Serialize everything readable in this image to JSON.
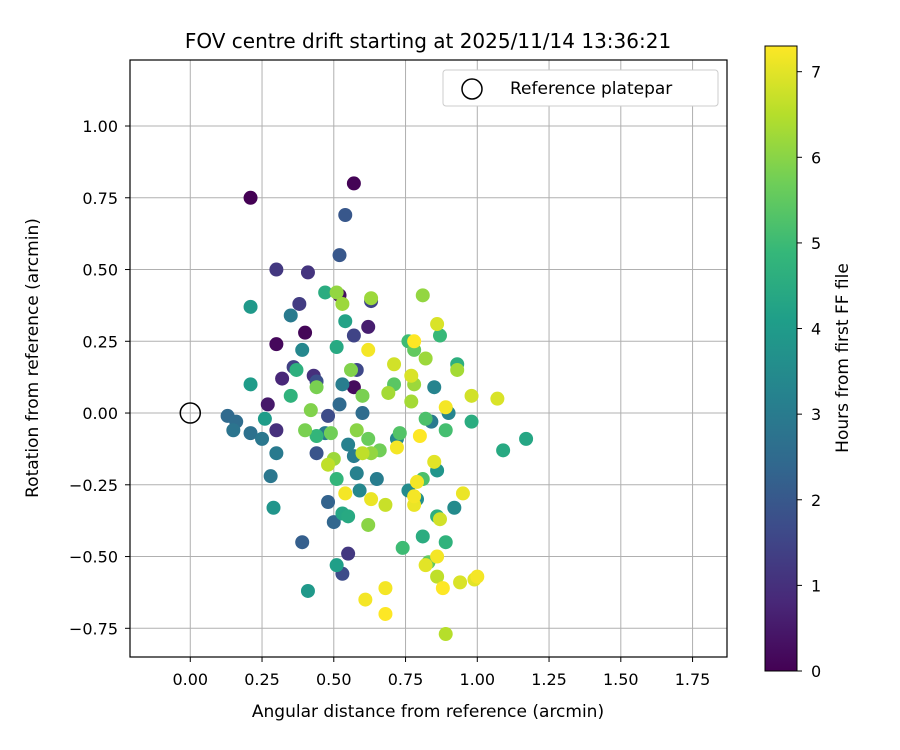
{
  "chart_data": {
    "type": "scatter",
    "title": "FOV centre drift starting at 2025/11/14 13:36:21",
    "xlabel": "Angular distance from reference (arcmin)",
    "ylabel": "Rotation from reference (arcmin)",
    "xlim": [
      -0.21,
      1.87
    ],
    "ylim": [
      -0.85,
      1.23
    ],
    "xticks": [
      0.0,
      0.25,
      0.5,
      0.75,
      1.0,
      1.25,
      1.5,
      1.75
    ],
    "xtick_labels": [
      "0.00",
      "0.25",
      "0.50",
      "0.75",
      "1.00",
      "1.25",
      "1.50",
      "1.75"
    ],
    "yticks": [
      -0.75,
      -0.5,
      -0.25,
      0.0,
      0.25,
      0.5,
      0.75,
      1.0
    ],
    "ytick_labels": [
      "−0.75",
      "−0.50",
      "−0.25",
      "0.00",
      "0.25",
      "0.50",
      "0.75",
      "1.00"
    ],
    "grid": true,
    "legend": {
      "position": "top-right",
      "entries": [
        "Reference platepar"
      ]
    },
    "reference_point": {
      "x": 0.0,
      "y": 0.0,
      "label": "Reference platepar"
    },
    "colorbar": {
      "label": "Hours from first FF file",
      "min": 0,
      "max": 7.3,
      "ticks": [
        0,
        1,
        2,
        3,
        4,
        5,
        6,
        7
      ],
      "tick_labels": [
        "0",
        "1",
        "2",
        "3",
        "4",
        "5",
        "6",
        "7"
      ],
      "colormap": "viridis",
      "colormap_stops": [
        "#440154",
        "#482878",
        "#3e4989",
        "#31688e",
        "#26828e",
        "#1f9e89",
        "#35b779",
        "#6ece58",
        "#b5de2b",
        "#fde725"
      ]
    },
    "points": [
      {
        "x": 0.21,
        "y": 0.75,
        "t": 0.0
      },
      {
        "x": 0.57,
        "y": 0.8,
        "t": 0.05
      },
      {
        "x": 0.4,
        "y": 0.28,
        "t": 0.1
      },
      {
        "x": 0.3,
        "y": 0.24,
        "t": 0.15
      },
      {
        "x": 0.57,
        "y": 0.09,
        "t": 0.2
      },
      {
        "x": 0.27,
        "y": 0.03,
        "t": 0.5
      },
      {
        "x": 0.32,
        "y": 0.12,
        "t": 0.8
      },
      {
        "x": 0.52,
        "y": 0.41,
        "t": 0.3
      },
      {
        "x": 0.62,
        "y": 0.3,
        "t": 0.6
      },
      {
        "x": 0.3,
        "y": 0.5,
        "t": 1.2
      },
      {
        "x": 0.41,
        "y": 0.49,
        "t": 1.1
      },
      {
        "x": 0.38,
        "y": 0.38,
        "t": 1.3
      },
      {
        "x": 0.36,
        "y": 0.16,
        "t": 1.4
      },
      {
        "x": 0.43,
        "y": 0.13,
        "t": 1.0
      },
      {
        "x": 0.55,
        "y": -0.49,
        "t": 1.2
      },
      {
        "x": 0.3,
        "y": -0.06,
        "t": 1.0
      },
      {
        "x": 0.57,
        "y": 0.27,
        "t": 1.5
      },
      {
        "x": 0.63,
        "y": 0.39,
        "t": 1.5
      },
      {
        "x": 0.58,
        "y": 0.15,
        "t": 1.6
      },
      {
        "x": 0.53,
        "y": -0.56,
        "t": 1.7
      },
      {
        "x": 0.44,
        "y": 0.11,
        "t": 1.8
      },
      {
        "x": 0.48,
        "y": -0.01,
        "t": 1.7
      },
      {
        "x": 0.44,
        "y": -0.14,
        "t": 1.9
      },
      {
        "x": 0.54,
        "y": 0.69,
        "t": 2.0
      },
      {
        "x": 0.52,
        "y": 0.55,
        "t": 2.0
      },
      {
        "x": 0.39,
        "y": -0.45,
        "t": 2.2
      },
      {
        "x": 0.48,
        "y": -0.31,
        "t": 2.3
      },
      {
        "x": 0.5,
        "y": -0.38,
        "t": 2.4
      },
      {
        "x": 0.52,
        "y": 0.03,
        "t": 2.5
      },
      {
        "x": 0.6,
        "y": 0.0,
        "t": 2.6
      },
      {
        "x": 0.13,
        "y": -0.01,
        "t": 2.5
      },
      {
        "x": 0.16,
        "y": -0.03,
        "t": 2.6
      },
      {
        "x": 0.21,
        "y": -0.07,
        "t": 2.7
      },
      {
        "x": 0.15,
        "y": -0.06,
        "t": 2.8
      },
      {
        "x": 0.25,
        "y": -0.09,
        "t": 2.9
      },
      {
        "x": 0.28,
        "y": -0.22,
        "t": 2.9
      },
      {
        "x": 0.3,
        "y": -0.14,
        "t": 3.0
      },
      {
        "x": 0.35,
        "y": 0.34,
        "t": 3.0
      },
      {
        "x": 0.39,
        "y": 0.22,
        "t": 3.4
      },
      {
        "x": 0.53,
        "y": 0.1,
        "t": 3.1
      },
      {
        "x": 0.47,
        "y": -0.07,
        "t": 3.0
      },
      {
        "x": 0.55,
        "y": -0.11,
        "t": 3.2
      },
      {
        "x": 0.57,
        "y": -0.15,
        "t": 3.1
      },
      {
        "x": 0.58,
        "y": -0.21,
        "t": 3.2
      },
      {
        "x": 0.65,
        "y": -0.23,
        "t": 3.1
      },
      {
        "x": 0.59,
        "y": -0.27,
        "t": 3.4
      },
      {
        "x": 0.85,
        "y": 0.09,
        "t": 3.3
      },
      {
        "x": 0.84,
        "y": -0.03,
        "t": 3.0
      },
      {
        "x": 0.72,
        "y": -0.09,
        "t": 3.4
      },
      {
        "x": 0.76,
        "y": -0.27,
        "t": 3.5
      },
      {
        "x": 0.79,
        "y": -0.3,
        "t": 3.6
      },
      {
        "x": 0.92,
        "y": -0.33,
        "t": 3.5
      },
      {
        "x": 0.9,
        "y": 0.0,
        "t": 3.3
      },
      {
        "x": 0.86,
        "y": -0.2,
        "t": 3.8
      },
      {
        "x": 0.29,
        "y": -0.33,
        "t": 3.8
      },
      {
        "x": 0.21,
        "y": 0.37,
        "t": 3.9
      },
      {
        "x": 0.21,
        "y": 0.1,
        "t": 4.0
      },
      {
        "x": 0.26,
        "y": -0.02,
        "t": 4.0
      },
      {
        "x": 0.41,
        "y": -0.62,
        "t": 3.9
      },
      {
        "x": 0.51,
        "y": -0.53,
        "t": 4.1
      },
      {
        "x": 0.54,
        "y": 0.32,
        "t": 4.2
      },
      {
        "x": 0.53,
        "y": -0.35,
        "t": 4.3
      },
      {
        "x": 0.55,
        "y": -0.36,
        "t": 4.4
      },
      {
        "x": 0.51,
        "y": 0.23,
        "t": 4.4
      },
      {
        "x": 0.47,
        "y": 0.42,
        "t": 4.5
      },
      {
        "x": 0.37,
        "y": 0.15,
        "t": 4.6
      },
      {
        "x": 0.35,
        "y": 0.06,
        "t": 4.7
      },
      {
        "x": 0.44,
        "y": -0.08,
        "t": 4.8
      },
      {
        "x": 0.51,
        "y": -0.23,
        "t": 4.8
      },
      {
        "x": 1.17,
        "y": -0.09,
        "t": 4.3
      },
      {
        "x": 1.09,
        "y": -0.13,
        "t": 4.4
      },
      {
        "x": 0.98,
        "y": -0.03,
        "t": 4.5
      },
      {
        "x": 0.93,
        "y": 0.17,
        "t": 4.6
      },
      {
        "x": 0.81,
        "y": -0.43,
        "t": 4.5
      },
      {
        "x": 0.86,
        "y": -0.36,
        "t": 4.6
      },
      {
        "x": 0.89,
        "y": -0.45,
        "t": 4.7
      },
      {
        "x": 0.87,
        "y": 0.27,
        "t": 4.9
      },
      {
        "x": 0.76,
        "y": 0.25,
        "t": 5.0
      },
      {
        "x": 0.74,
        "y": -0.47,
        "t": 5.0
      },
      {
        "x": 0.89,
        "y": -0.06,
        "t": 5.1
      },
      {
        "x": 0.82,
        "y": -0.02,
        "t": 5.2
      },
      {
        "x": 0.83,
        "y": -0.52,
        "t": 5.5
      },
      {
        "x": 0.78,
        "y": 0.22,
        "t": 5.5
      },
      {
        "x": 0.81,
        "y": -0.23,
        "t": 5.2
      },
      {
        "x": 0.71,
        "y": 0.1,
        "t": 5.4
      },
      {
        "x": 0.73,
        "y": -0.07,
        "t": 5.3
      },
      {
        "x": 0.62,
        "y": -0.09,
        "t": 5.6
      },
      {
        "x": 0.66,
        "y": -0.13,
        "t": 5.7
      },
      {
        "x": 0.4,
        "y": -0.06,
        "t": 5.8
      },
      {
        "x": 0.42,
        "y": 0.01,
        "t": 5.9
      },
      {
        "x": 0.44,
        "y": 0.09,
        "t": 5.8
      },
      {
        "x": 0.49,
        "y": -0.07,
        "t": 5.7
      },
      {
        "x": 0.56,
        "y": 0.15,
        "t": 5.9
      },
      {
        "x": 0.6,
        "y": 0.06,
        "t": 5.8
      },
      {
        "x": 0.58,
        "y": -0.06,
        "t": 6.0
      },
      {
        "x": 0.62,
        "y": -0.39,
        "t": 6.0
      },
      {
        "x": 0.63,
        "y": -0.14,
        "t": 6.1
      },
      {
        "x": 0.5,
        "y": -0.16,
        "t": 6.2
      },
      {
        "x": 0.51,
        "y": 0.42,
        "t": 6.1
      },
      {
        "x": 0.53,
        "y": 0.38,
        "t": 6.2
      },
      {
        "x": 0.63,
        "y": 0.4,
        "t": 6.2
      },
      {
        "x": 0.69,
        "y": 0.07,
        "t": 6.3
      },
      {
        "x": 0.78,
        "y": 0.1,
        "t": 6.2
      },
      {
        "x": 0.77,
        "y": 0.04,
        "t": 6.3
      },
      {
        "x": 0.81,
        "y": 0.41,
        "t": 6.1
      },
      {
        "x": 0.82,
        "y": 0.19,
        "t": 6.2
      },
      {
        "x": 0.93,
        "y": 0.15,
        "t": 6.3
      },
      {
        "x": 0.6,
        "y": -0.14,
        "t": 6.6
      },
      {
        "x": 0.48,
        "y": -0.18,
        "t": 6.6
      },
      {
        "x": 0.68,
        "y": -0.32,
        "t": 6.7
      },
      {
        "x": 0.87,
        "y": -0.37,
        "t": 6.8
      },
      {
        "x": 0.98,
        "y": 0.06,
        "t": 6.8
      },
      {
        "x": 1.07,
        "y": 0.05,
        "t": 6.9
      },
      {
        "x": 0.86,
        "y": 0.31,
        "t": 6.9
      },
      {
        "x": 0.71,
        "y": 0.17,
        "t": 6.8
      },
      {
        "x": 0.77,
        "y": 0.13,
        "t": 6.9
      },
      {
        "x": 0.89,
        "y": -0.77,
        "t": 6.5
      },
      {
        "x": 0.86,
        "y": -0.57,
        "t": 6.6
      },
      {
        "x": 0.82,
        "y": -0.53,
        "t": 7.0
      },
      {
        "x": 0.85,
        "y": -0.17,
        "t": 7.0
      },
      {
        "x": 0.94,
        "y": -0.59,
        "t": 6.9
      },
      {
        "x": 0.99,
        "y": -0.58,
        "t": 7.0
      },
      {
        "x": 1.0,
        "y": -0.57,
        "t": 7.2
      },
      {
        "x": 0.54,
        "y": -0.28,
        "t": 7.2
      },
      {
        "x": 0.62,
        "y": 0.22,
        "t": 7.2
      },
      {
        "x": 0.63,
        "y": -0.3,
        "t": 7.1
      },
      {
        "x": 0.61,
        "y": -0.65,
        "t": 7.2
      },
      {
        "x": 0.68,
        "y": -0.61,
        "t": 7.2
      },
      {
        "x": 0.68,
        "y": -0.7,
        "t": 7.3
      },
      {
        "x": 0.72,
        "y": -0.12,
        "t": 7.2
      },
      {
        "x": 0.78,
        "y": -0.29,
        "t": 7.2
      },
      {
        "x": 0.78,
        "y": -0.32,
        "t": 7.1
      },
      {
        "x": 0.79,
        "y": -0.24,
        "t": 7.2
      },
      {
        "x": 0.8,
        "y": -0.08,
        "t": 7.3
      },
      {
        "x": 0.89,
        "y": 0.02,
        "t": 7.2
      },
      {
        "x": 0.95,
        "y": -0.28,
        "t": 7.1
      },
      {
        "x": 0.86,
        "y": -0.5,
        "t": 7.2
      },
      {
        "x": 0.88,
        "y": -0.61,
        "t": 7.3
      },
      {
        "x": 0.78,
        "y": 0.25,
        "t": 7.3
      }
    ]
  }
}
